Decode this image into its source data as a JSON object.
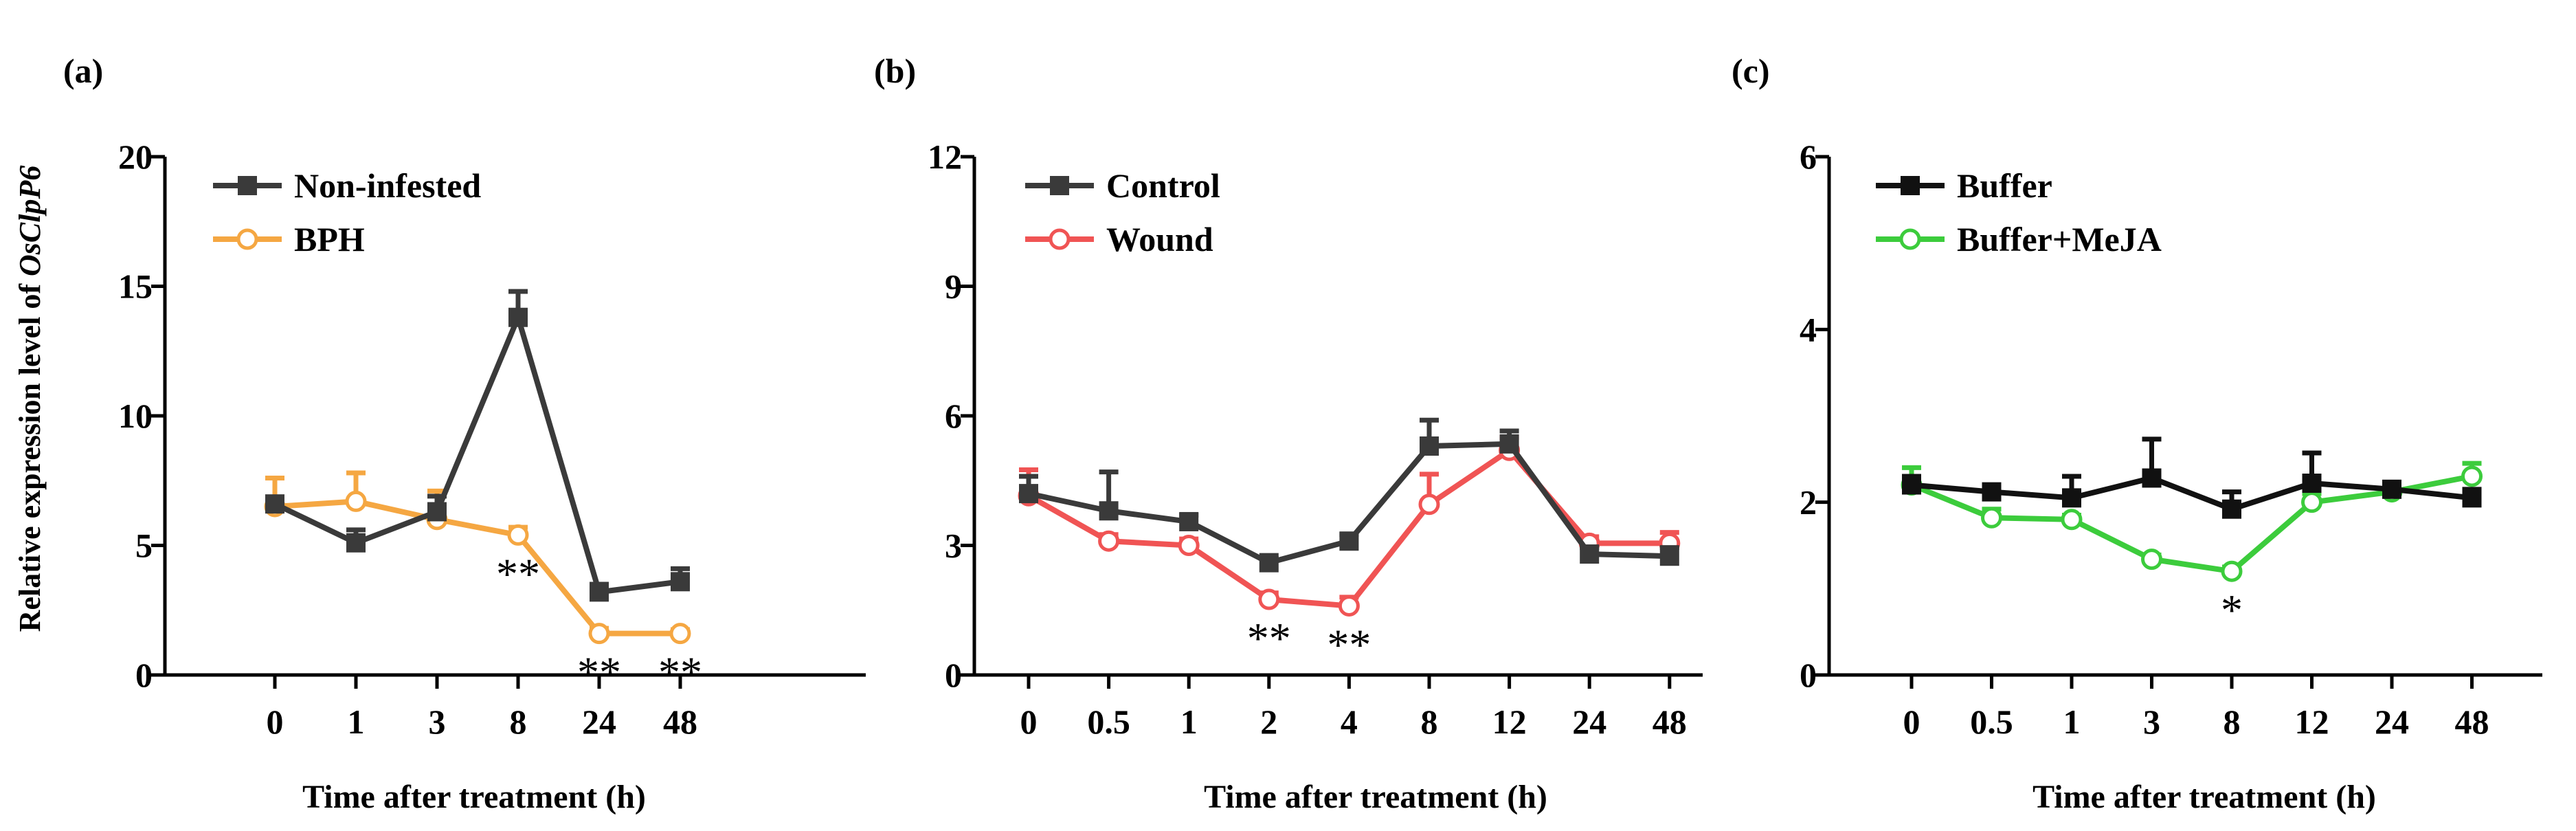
{
  "figure": {
    "y_axis_label": "Relative expression level of ",
    "y_axis_label_gene": "OsClpP6"
  },
  "chart_data": [
    {
      "type": "line",
      "panel_label": "(a)",
      "categories": [
        "0",
        "1",
        "3",
        "8",
        "24",
        "48"
      ],
      "xlabel": "Time after treatment (h)",
      "ylabel": "Relative expression level of OsClpP6",
      "ylim": [
        0,
        20
      ],
      "yticks": [
        "0",
        "5",
        "10",
        "15",
        "20"
      ],
      "legend_position": "top-left",
      "series": [
        {
          "name": "Non-infested",
          "color": "#3a3a3a",
          "marker": "square",
          "values": [
            6.6,
            5.1,
            6.3,
            13.8,
            3.2,
            3.6
          ],
          "errors": [
            0.0,
            0.5,
            0.6,
            1.0,
            0.3,
            0.5
          ]
        },
        {
          "name": "BPH",
          "color": "#f5a742",
          "marker": "circle",
          "values": [
            6.5,
            6.7,
            6.0,
            5.4,
            1.6,
            1.6
          ],
          "errors": [
            1.1,
            1.1,
            1.1,
            0.3,
            0.2,
            0.15
          ]
        }
      ],
      "annotations": [
        {
          "category": "8",
          "text": "**"
        },
        {
          "category": "24",
          "text": "**"
        },
        {
          "category": "48",
          "text": "**"
        }
      ]
    },
    {
      "type": "line",
      "panel_label": "(b)",
      "categories": [
        "0",
        "0.5",
        "1",
        "2",
        "4",
        "8",
        "12",
        "24",
        "48"
      ],
      "xlabel": "Time after treatment (h)",
      "ylabel": "",
      "ylim": [
        0,
        12
      ],
      "yticks": [
        "0",
        "3",
        "6",
        "9",
        "12"
      ],
      "legend_position": "top-left",
      "series": [
        {
          "name": "Control",
          "color": "#3a3a3a",
          "marker": "square",
          "values": [
            4.2,
            3.8,
            3.55,
            2.6,
            3.1,
            5.3,
            5.35,
            2.8,
            2.75
          ],
          "errors": [
            0.4,
            0.9,
            0.15,
            0.1,
            0.15,
            0.6,
            0.3,
            0.15,
            0.2
          ]
        },
        {
          "name": "Wound",
          "color": "#f05454",
          "marker": "circle",
          "values": [
            4.15,
            3.1,
            3.0,
            1.75,
            1.6,
            3.95,
            5.2,
            3.05,
            3.05
          ],
          "errors": [
            0.6,
            0.15,
            0.15,
            0.15,
            0.2,
            0.7,
            0.3,
            0.15,
            0.25
          ]
        }
      ],
      "annotations": [
        {
          "category": "2",
          "text": "**"
        },
        {
          "category": "4",
          "text": "**"
        }
      ]
    },
    {
      "type": "line",
      "panel_label": "(c)",
      "categories": [
        "0",
        "0.5",
        "1",
        "3",
        "8",
        "12",
        "24",
        "48"
      ],
      "xlabel": "Time after treatment (h)",
      "ylabel": "",
      "ylim": [
        0,
        6
      ],
      "yticks": [
        "0",
        "2",
        "4",
        "6"
      ],
      "legend_position": "top-left",
      "series": [
        {
          "name": "Buffer",
          "color": "#111111",
          "marker": "square",
          "values": [
            2.2,
            2.12,
            2.05,
            2.28,
            1.92,
            2.22,
            2.15,
            2.05
          ],
          "errors": [
            0.1,
            0.05,
            0.25,
            0.45,
            0.2,
            0.35,
            0.05,
            0.1
          ]
        },
        {
          "name": "Buffer+MeJA",
          "color": "#3ccc3c",
          "marker": "circle",
          "values": [
            2.2,
            1.82,
            1.8,
            1.34,
            1.2,
            2.0,
            2.12,
            2.3
          ],
          "errors": [
            0.2,
            0.1,
            0.05,
            0.05,
            0.05,
            0.1,
            0.1,
            0.15
          ]
        }
      ],
      "annotations": [
        {
          "category": "8",
          "text": "*"
        }
      ]
    }
  ]
}
